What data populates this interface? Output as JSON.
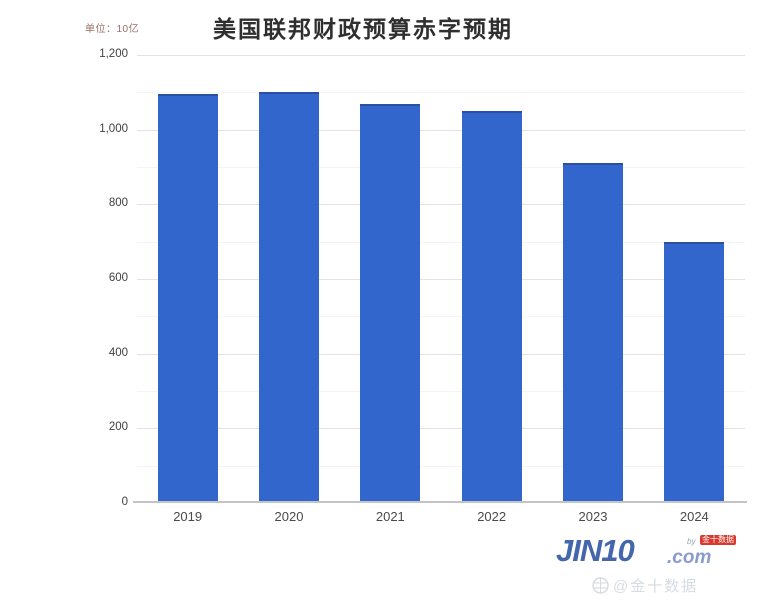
{
  "header": {
    "unit_label": "单位：10亿",
    "title": "美国联邦财政预算赤字预期"
  },
  "chart_data": {
    "type": "bar",
    "title": "美国联邦财政预算赤字预期",
    "unit_label": "单位：10亿",
    "categories": [
      "2019",
      "2020",
      "2021",
      "2022",
      "2023",
      "2024"
    ],
    "values": [
      1095,
      1100,
      1070,
      1050,
      910,
      700
    ],
    "xlabel": "",
    "ylabel": "",
    "ylim": [
      0,
      1200
    ],
    "ytick_step": 200,
    "ytick_labels": [
      "0",
      "200",
      "400",
      "600",
      "800",
      "1,000",
      "1,200"
    ],
    "grid": "horizontal, major every 200 with faint minor every 100",
    "legend": "none",
    "bar_color": "#3366cc",
    "bar_edge_color": "#2a4fa3"
  },
  "watermark": {
    "logo_text": "JIN10",
    "logo_suffix": ".com",
    "by_label": "by",
    "badge_label": "金十数据",
    "subtext": "@金十数据",
    "logo_color": "#4566ad",
    "suffix_color": "#8a9bce",
    "badge_color": "#d93a2f"
  },
  "colors": {
    "background": "#ffffff",
    "title_text": "#2f2f2f",
    "axis_label": "#3f3f3f",
    "gridline_major": "#e3e3e3",
    "gridline_minor": "#f4f4f4",
    "axis_line": "#c4c4c4"
  }
}
